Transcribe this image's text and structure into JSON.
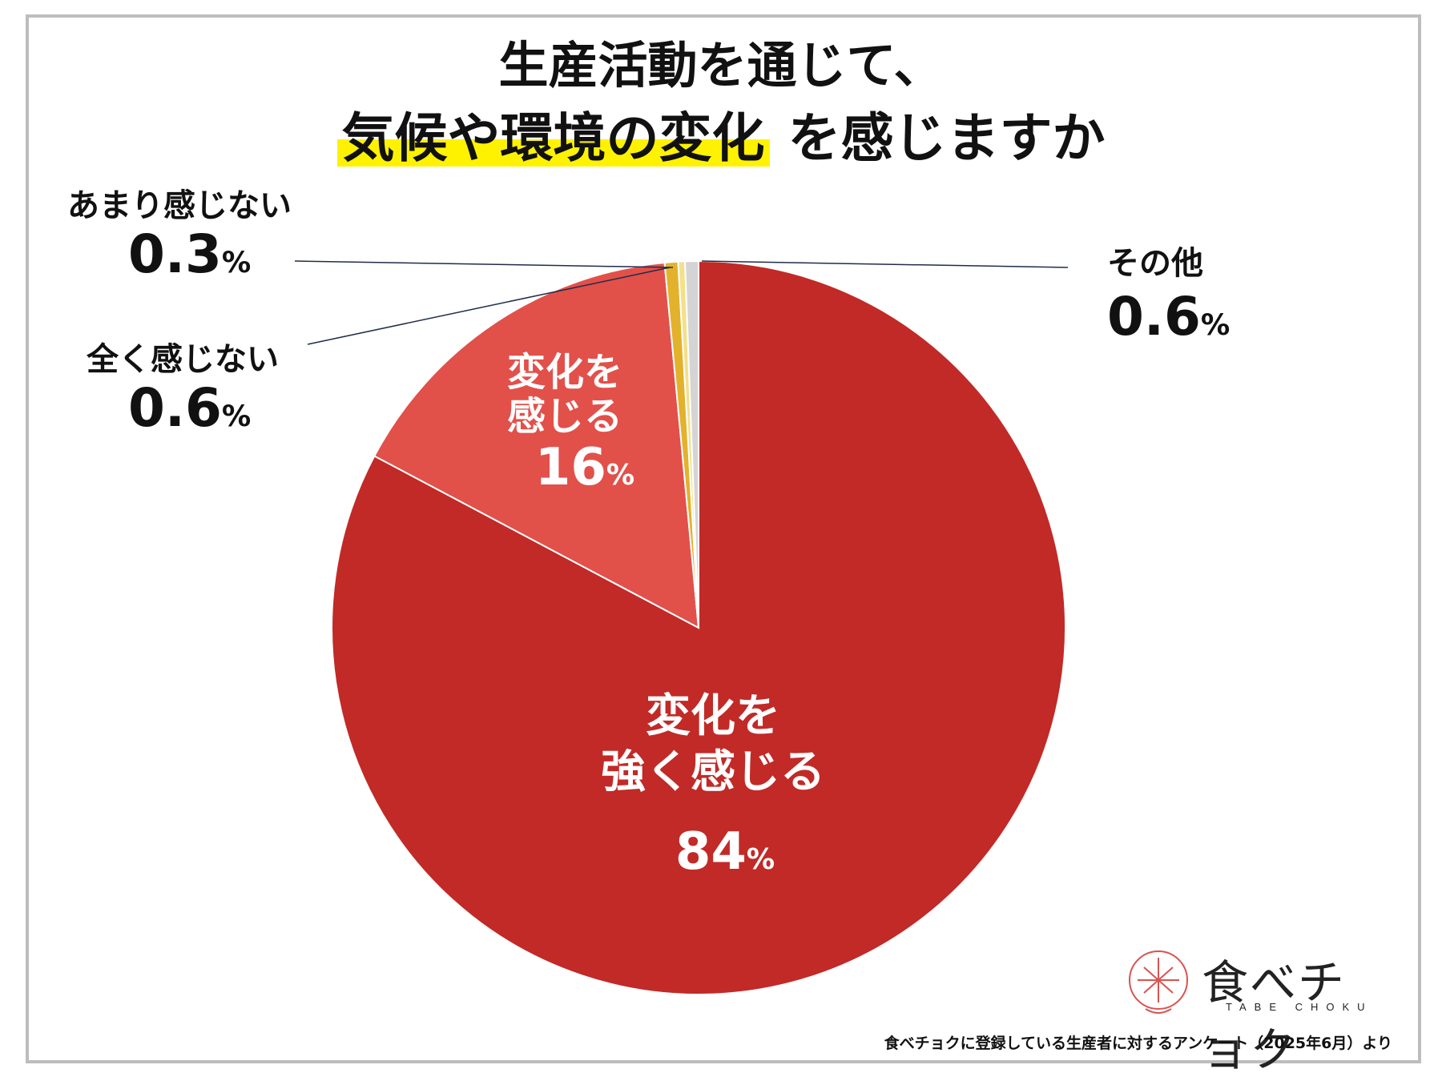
{
  "title": {
    "line1": "生産活動を通じて、",
    "line2_highlight": "気候や環境の変化",
    "line2_rest": " を感じますか"
  },
  "chart_data": {
    "type": "pie",
    "title": "生産活動を通じて、気候や環境の変化 を感じますか",
    "slices": [
      {
        "name": "変化を強く感じる",
        "value": 84,
        "label": "84",
        "color": "#c12a27"
      },
      {
        "name": "変化を感じる",
        "value": 16,
        "label": "16",
        "color": "#e2504a"
      },
      {
        "name": "全く感じない",
        "value": 0.6,
        "label": "0.6",
        "color": "#e2b22d"
      },
      {
        "name": "あまり感じない",
        "value": 0.3,
        "label": "0.3",
        "color": "#f3e08a"
      },
      {
        "name": "その他",
        "value": 0.6,
        "label": "0.6",
        "color": "#d4d4d4"
      }
    ],
    "unit": "%"
  },
  "labels": {
    "strong_line1": "変化を",
    "strong_line2": "強く感じる",
    "strong_value": "84",
    "feel_line1": "変化を",
    "feel_line2": "感じる",
    "feel_value": "16",
    "notmuch_name": "あまり感じない",
    "notmuch_value": "0.3",
    "notatall_name": "全く感じない",
    "notatall_value": "0.6",
    "other_name": "その他",
    "other_value": "0.6",
    "pct": "%"
  },
  "logo": {
    "brand": "食べチョク",
    "brand_en": "TABE CHOKU"
  },
  "source": "食べチョクに登録している生産者に対するアンケート（2025年6月）より"
}
